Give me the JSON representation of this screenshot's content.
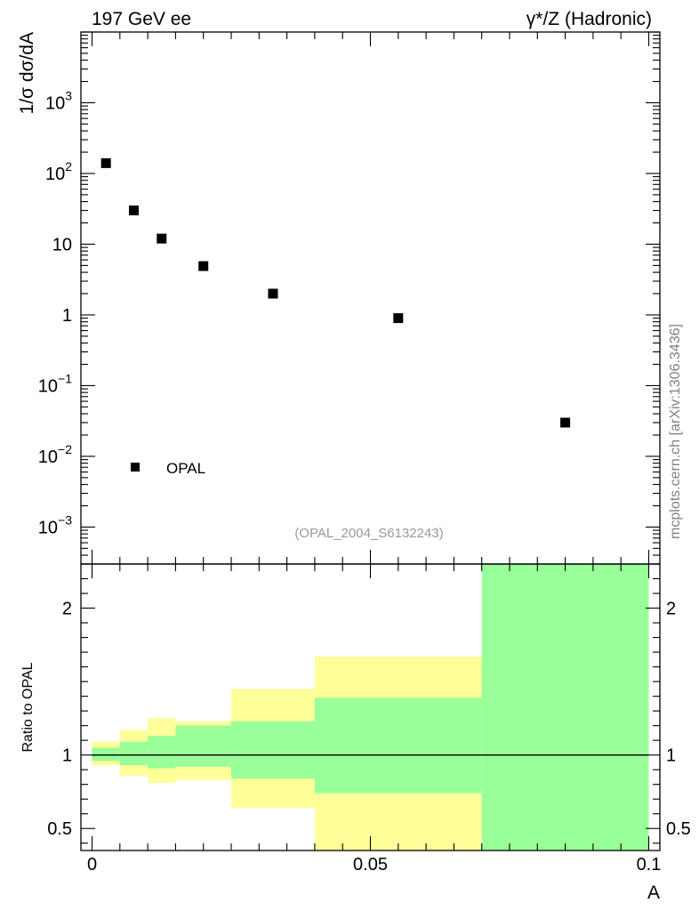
{
  "header": {
    "left": "197 GeV ee",
    "right": "γ*/Z (Hadronic)"
  },
  "watermark": "mcplots.cern.ch [arXiv:1306.3436]",
  "analysis_id": "(OPAL_2004_S6132243)",
  "legend": {
    "label": "OPAL"
  },
  "colors": {
    "marker": "#000000",
    "band_outer": "#ffff99",
    "band_inner": "#99ff99",
    "ref_line": "#000000"
  },
  "chart_data": [
    {
      "type": "scatter",
      "panel": "main",
      "ylabel": "1/σ dσ/dA",
      "yscale": "log",
      "ylim": [
        0.0003,
        10000
      ],
      "xlim": [
        -0.002,
        0.102
      ],
      "y_ticks": [
        {
          "value": 0.001,
          "mant": "10",
          "exp": "−3"
        },
        {
          "value": 0.01,
          "mant": "10",
          "exp": "−2"
        },
        {
          "value": 0.1,
          "mant": "10",
          "exp": "−1"
        },
        {
          "value": 1,
          "mant": "1",
          "exp": ""
        },
        {
          "value": 10,
          "mant": "10",
          "exp": ""
        },
        {
          "value": 100,
          "mant": "10",
          "exp": "2"
        },
        {
          "value": 1000,
          "mant": "10",
          "exp": "3"
        }
      ],
      "series": [
        {
          "name": "OPAL",
          "x": [
            0.0025,
            0.0075,
            0.0125,
            0.02,
            0.0325,
            0.055,
            0.085
          ],
          "y": [
            140,
            30,
            12,
            4.9,
            2.0,
            0.9,
            0.03
          ]
        }
      ]
    },
    {
      "type": "area",
      "panel": "ratio",
      "ylabel": "Ratio to OPAL",
      "xlabel": "A",
      "ylim": [
        0.35,
        2.3
      ],
      "xlim": [
        -0.002,
        0.102
      ],
      "y_ticks": [
        {
          "value": 0.5,
          "label": "0.5"
        },
        {
          "value": 1,
          "label": "1"
        },
        {
          "value": 2,
          "label": "2"
        }
      ],
      "x_ticks": [
        {
          "value": 0,
          "label": "0"
        },
        {
          "value": 0.05,
          "label": "0.05"
        },
        {
          "value": 0.1,
          "label": "0.1"
        }
      ],
      "bins": [
        {
          "lo": 0.0,
          "hi": 0.005,
          "inner": [
            0.96,
            1.05
          ],
          "outer": [
            0.93,
            1.09
          ]
        },
        {
          "lo": 0.005,
          "hi": 0.01,
          "inner": [
            0.93,
            1.09
          ],
          "outer": [
            0.86,
            1.17
          ]
        },
        {
          "lo": 0.01,
          "hi": 0.015,
          "inner": [
            0.91,
            1.13
          ],
          "outer": [
            0.81,
            1.25
          ]
        },
        {
          "lo": 0.015,
          "hi": 0.025,
          "inner": [
            0.92,
            1.2
          ],
          "outer": [
            0.83,
            1.23
          ]
        },
        {
          "lo": 0.025,
          "hi": 0.04,
          "inner": [
            0.84,
            1.23
          ],
          "outer": [
            0.64,
            1.45
          ]
        },
        {
          "lo": 0.04,
          "hi": 0.07,
          "inner": [
            0.74,
            1.39
          ],
          "outer": [
            0.35,
            1.67
          ]
        },
        {
          "lo": 0.07,
          "hi": 0.1,
          "inner": [
            0.35,
            2.3
          ],
          "outer": [
            0.35,
            2.3
          ]
        }
      ],
      "ref_value": 1
    }
  ]
}
